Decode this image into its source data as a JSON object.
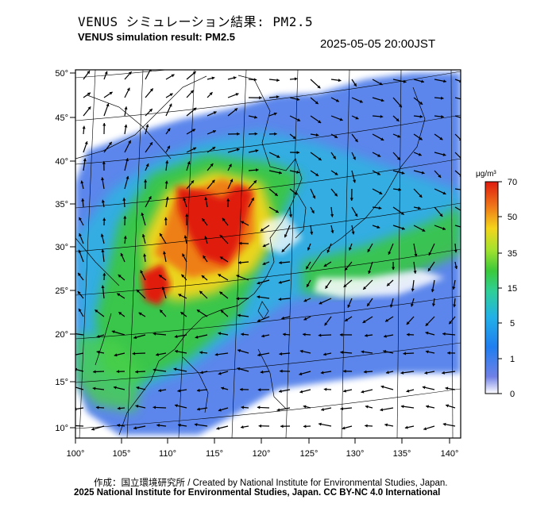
{
  "header": {
    "title_jp": "VENUS シミュレーション結果: PM2.5",
    "title_en": "VENUS simulation result: PM2.5",
    "timestamp": "2025-05-05 20:00JST"
  },
  "axes": {
    "lon_ticks": [
      "100°",
      "105°",
      "110°",
      "115°",
      "120°",
      "125°",
      "130°",
      "135°",
      "140°"
    ],
    "lat_ticks": [
      "50°",
      "45°",
      "40°",
      "35°",
      "30°",
      "25°",
      "20°",
      "15°",
      "10°"
    ]
  },
  "colorbar": {
    "unit": "μg/m³",
    "ticks": [
      "70",
      "50",
      "35",
      "15",
      "5",
      "1",
      "0"
    ],
    "colors": [
      "#ffffff",
      "#6a7ce8",
      "#1a8ef0",
      "#2ab7e0",
      "#34d69a",
      "#3ac83a",
      "#9ee02e",
      "#f6d21a",
      "#f07818",
      "#e02010"
    ]
  },
  "footer": {
    "credit": "作成：国立環境研究所 / Created by National Institute for Environmental Studies, Japan.",
    "copyright": "2025 National Institute for Environmental Studies, Japan. CC BY-NC 4.0 International"
  }
}
